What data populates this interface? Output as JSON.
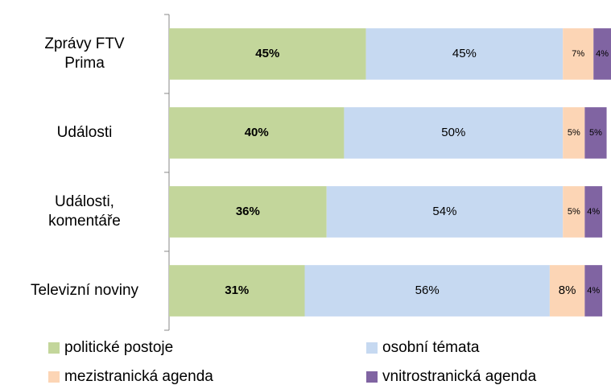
{
  "chart_data": {
    "type": "stacked-bar-horizontal",
    "categories": [
      "Zprávy FTV\nPrima",
      "Události",
      "Události,\nkomentáře",
      "Televizní noviny"
    ],
    "xlim": [
      0,
      101
    ],
    "series": [
      {
        "name": "politické postoje",
        "color": "#c3d69b",
        "values": [
          45,
          40,
          36,
          31
        ],
        "value_labels": [
          "45%",
          "40%",
          "36%",
          "31%"
        ]
      },
      {
        "name": "osobní témata",
        "color": "#c6d9f1",
        "values": [
          45,
          50,
          54,
          56
        ],
        "value_labels": [
          "45%",
          "50%",
          "54%",
          "56%"
        ]
      },
      {
        "name": "mezistranická agenda",
        "color": "#fcd5b5",
        "values": [
          7,
          5,
          5,
          8
        ],
        "value_labels": [
          "7%",
          "5%",
          "5%",
          "8%"
        ]
      },
      {
        "name": "vnitrostranická agenda",
        "color": "#8064a2",
        "values": [
          4,
          5,
          4,
          4
        ],
        "value_labels": [
          "4%",
          "5%",
          "4%",
          "4%"
        ]
      }
    ]
  }
}
